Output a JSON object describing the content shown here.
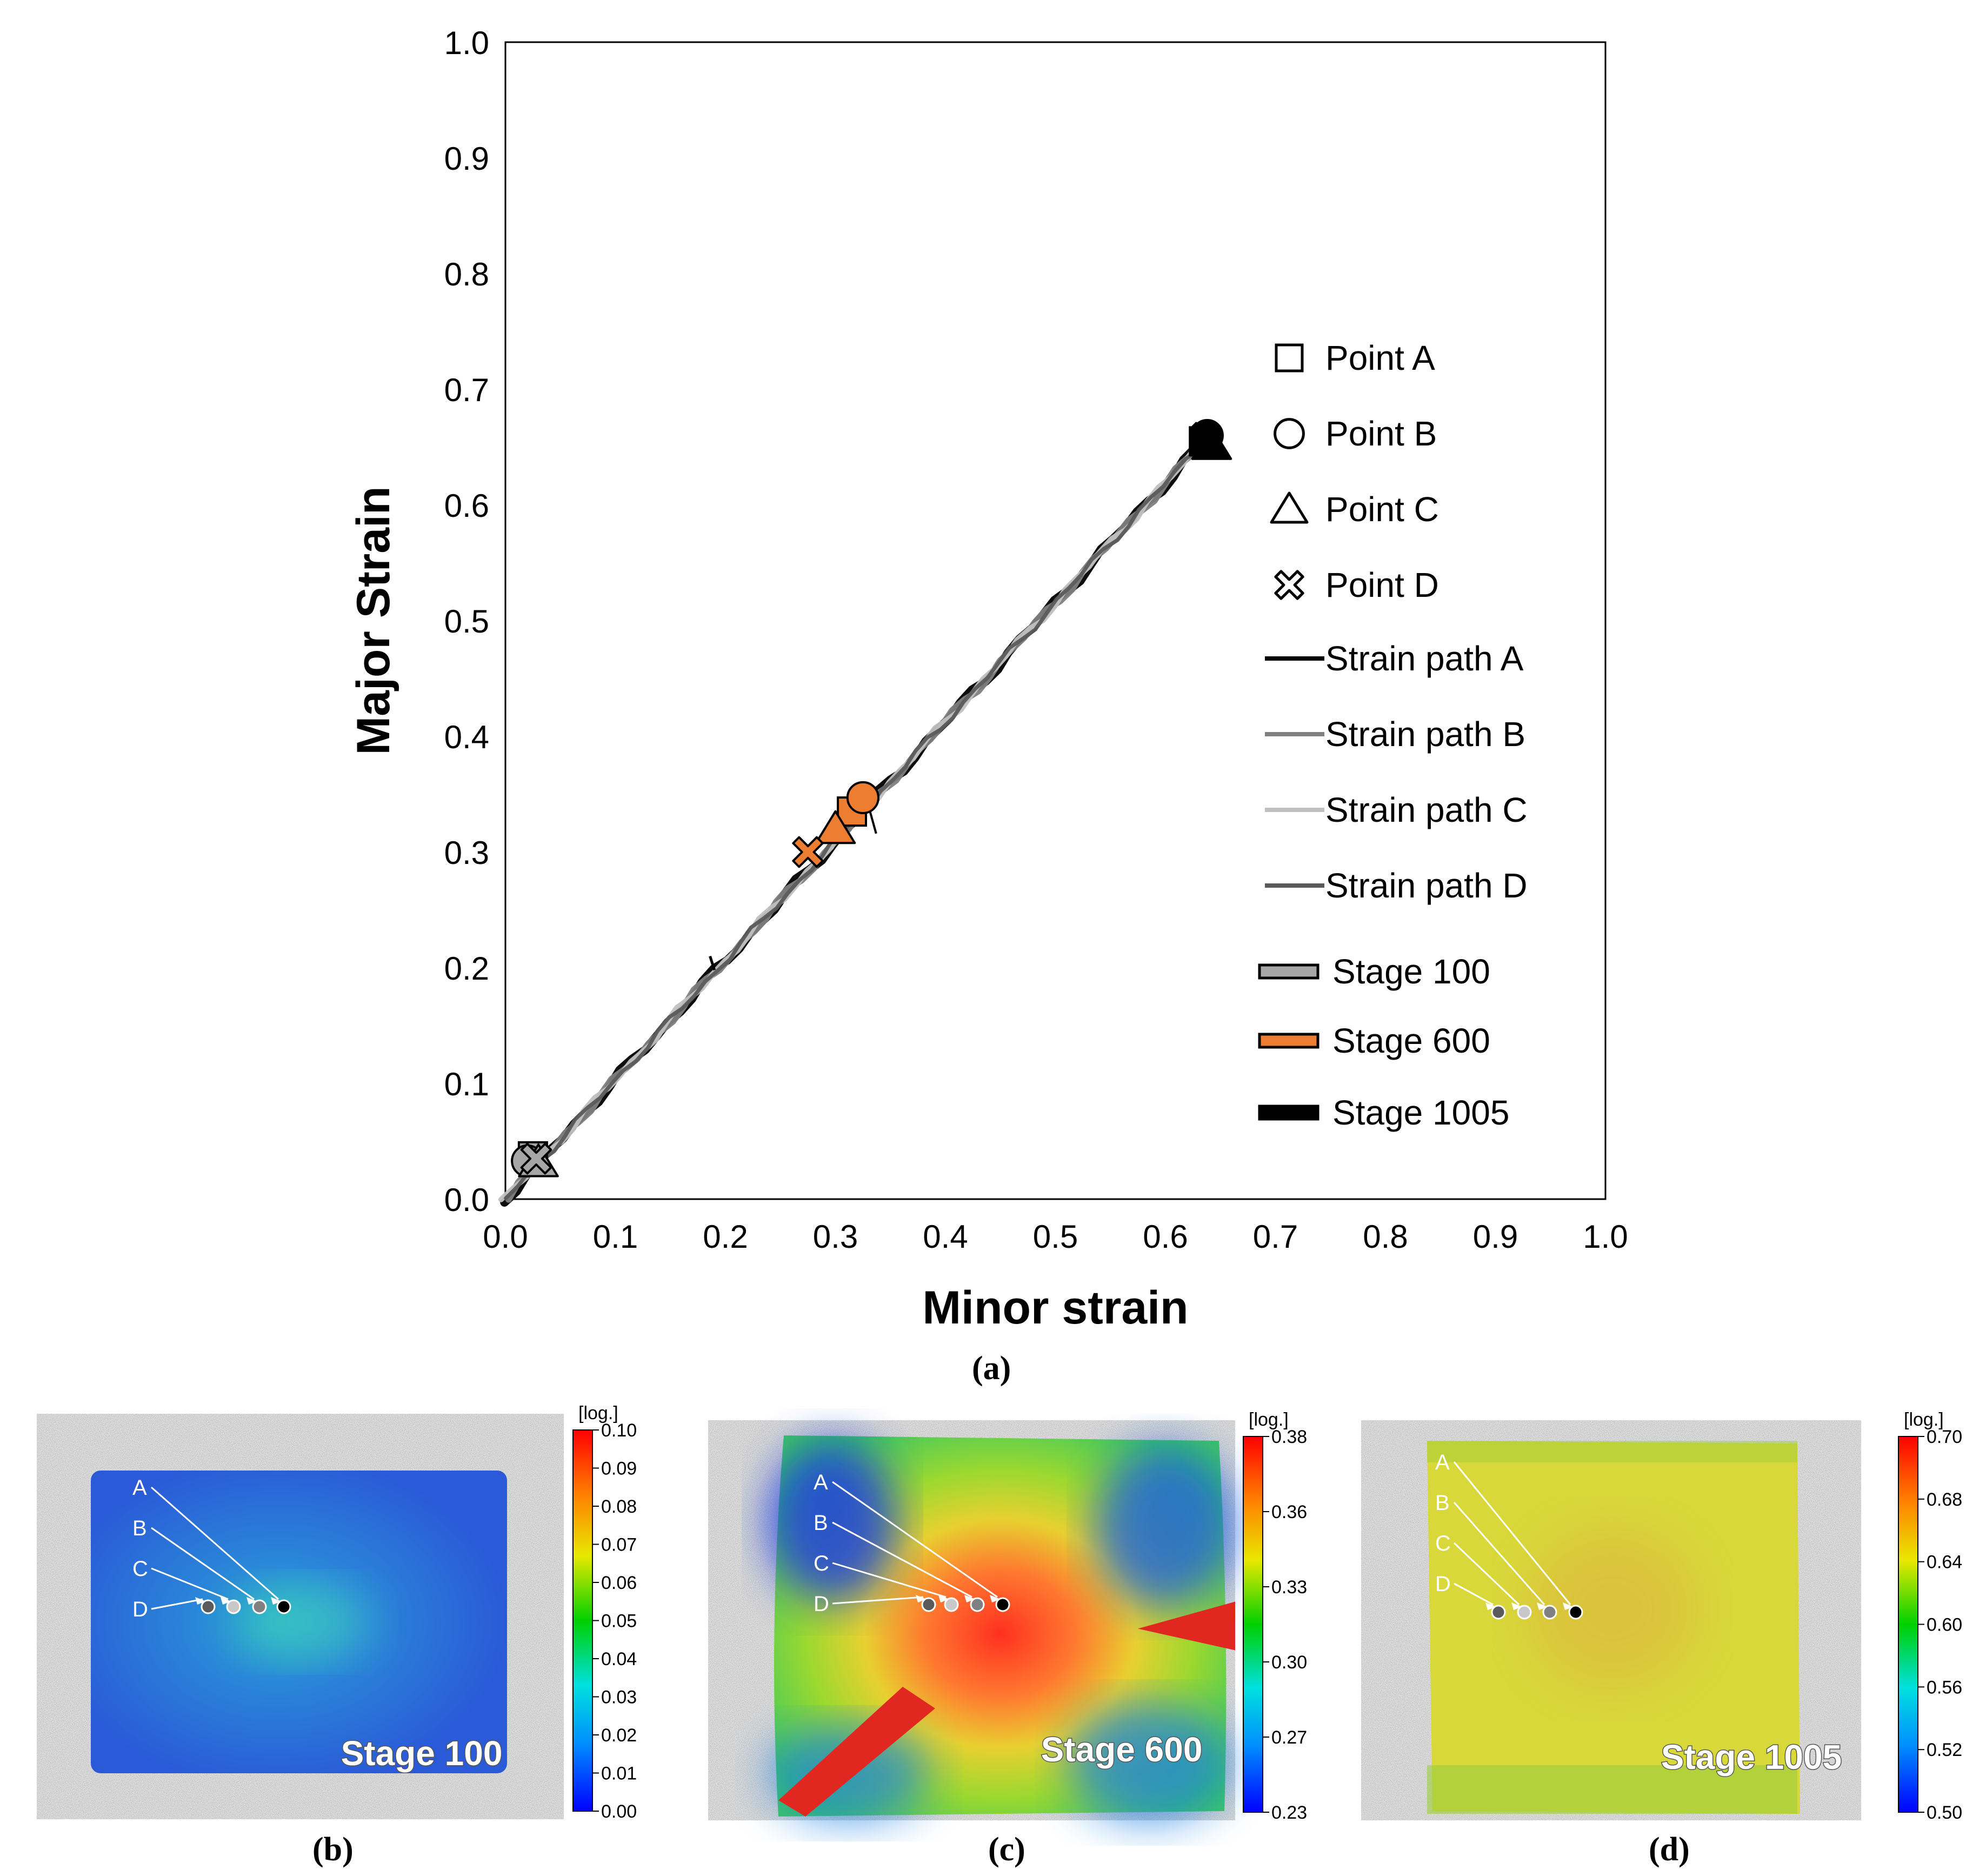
{
  "chart_data": {
    "type": "scatter",
    "title": "",
    "xlabel": "Minor strain",
    "ylabel": "Major Strain",
    "xlim": [
      0.0,
      1.0
    ],
    "ylim": [
      0.0,
      1.0
    ],
    "x_ticks": [
      "0.0",
      "0.1",
      "0.2",
      "0.3",
      "0.4",
      "0.5",
      "0.6",
      "0.7",
      "0.8",
      "0.9",
      "1.0"
    ],
    "y_ticks": [
      "0.0",
      "0.1",
      "0.2",
      "0.3",
      "0.4",
      "0.5",
      "0.6",
      "0.7",
      "0.8",
      "0.9",
      "1.0"
    ],
    "grid": false,
    "legend_position": "right",
    "series": [
      {
        "name": "Strain path A",
        "style": "line",
        "color": "#000000",
        "x": [
          0.0,
          0.64
        ],
        "y": [
          0.0,
          0.66
        ]
      },
      {
        "name": "Strain path B",
        "style": "line",
        "color": "#808080",
        "x": [
          0.0,
          0.64
        ],
        "y": [
          0.0,
          0.66
        ]
      },
      {
        "name": "Strain path C",
        "style": "line",
        "color": "#c0c0c0",
        "x": [
          0.0,
          0.64
        ],
        "y": [
          0.0,
          0.66
        ]
      },
      {
        "name": "Strain path D",
        "style": "line",
        "color": "#5a5a5a",
        "x": [
          0.0,
          0.64
        ],
        "y": [
          0.0,
          0.66
        ]
      }
    ],
    "points": [
      {
        "label": "Point A",
        "stage": "Stage 100",
        "marker": "square",
        "x": 0.025,
        "y": 0.037
      },
      {
        "label": "Point B",
        "stage": "Stage 100",
        "marker": "circle",
        "x": 0.02,
        "y": 0.033
      },
      {
        "label": "Point C",
        "stage": "Stage 100",
        "marker": "triangle",
        "x": 0.03,
        "y": 0.032
      },
      {
        "label": "Point D",
        "stage": "Stage 100",
        "marker": "cross",
        "x": 0.028,
        "y": 0.035
      },
      {
        "label": "Point A",
        "stage": "Stage 600",
        "marker": "square",
        "x": 0.315,
        "y": 0.335
      },
      {
        "label": "Point B",
        "stage": "Stage 600",
        "marker": "circle",
        "x": 0.325,
        "y": 0.347
      },
      {
        "label": "Point C",
        "stage": "Stage 600",
        "marker": "triangle",
        "x": 0.3,
        "y": 0.32
      },
      {
        "label": "Point D",
        "stage": "Stage 600",
        "marker": "cross",
        "x": 0.275,
        "y": 0.3
      },
      {
        "label": "Point A",
        "stage": "Stage 1005",
        "marker": "square",
        "x": 0.635,
        "y": 0.655
      },
      {
        "label": "Point B",
        "stage": "Stage 1005",
        "marker": "circle",
        "x": 0.638,
        "y": 0.66
      },
      {
        "label": "Point C",
        "stage": "Stage 1005",
        "marker": "triangle",
        "x": 0.642,
        "y": 0.652
      },
      {
        "label": "Point D",
        "stage": "Stage 1005",
        "marker": "cross",
        "x": 0.636,
        "y": 0.658
      }
    ],
    "legend": [
      {
        "label": "Point A",
        "kind": "square"
      },
      {
        "label": "Point B",
        "kind": "circle"
      },
      {
        "label": "Point C",
        "kind": "triangle"
      },
      {
        "label": "Point D",
        "kind": "cross"
      },
      {
        "label": "Strain path A",
        "kind": "line",
        "color": "#000000"
      },
      {
        "label": "Strain path B",
        "kind": "line",
        "color": "#808080"
      },
      {
        "label": "Strain path C",
        "kind": "line",
        "color": "#c0c0c0"
      },
      {
        "label": "Strain path D",
        "kind": "line",
        "color": "#5a5a5a"
      },
      {
        "label": "Stage 100",
        "kind": "stage",
        "color": "#a6a6a6"
      },
      {
        "label": "Stage 600",
        "kind": "stage",
        "color": "#ed7d31"
      },
      {
        "label": "Stage 1005",
        "kind": "stage",
        "color": "#000000"
      }
    ],
    "stage_colors": {
      "Stage 100": "#a6a6a6",
      "Stage 600": "#ed7d31",
      "Stage 1005": "#000000"
    }
  },
  "captions": {
    "a": "(a)",
    "b": "(b)",
    "c": "(c)",
    "d": "(d)"
  },
  "panels": [
    {
      "id": "b",
      "stage_label": "Stage 100",
      "scale_unit": "[log.]",
      "scale_ticks": [
        "0.10",
        "0.09",
        "0.08",
        "0.07",
        "0.06",
        "0.05",
        "0.04",
        "0.03",
        "0.02",
        "0.01",
        "0.00"
      ],
      "point_labels": [
        "A",
        "B",
        "C",
        "D"
      ],
      "field": "blue",
      "point_colors": [
        "#000000",
        "#808080",
        "#c8c8c8",
        "#5a5a5a"
      ]
    },
    {
      "id": "c",
      "stage_label": "Stage 600",
      "scale_unit": "[log.]",
      "scale_ticks": [
        "0.38",
        "0.36",
        "0.33",
        "0.30",
        "0.27",
        "0.23"
      ],
      "point_labels": [
        "A",
        "B",
        "C",
        "D"
      ],
      "field": "hot",
      "point_colors": [
        "#000000",
        "#808080",
        "#c8c8c8",
        "#5a5a5a"
      ]
    },
    {
      "id": "d",
      "stage_label": "Stage 1005",
      "scale_unit": "[log.]",
      "scale_ticks": [
        "0.70",
        "0.68",
        "0.64",
        "0.60",
        "0.56",
        "0.52",
        "0.50"
      ],
      "point_labels": [
        "A",
        "B",
        "C",
        "D"
      ],
      "field": "yellow",
      "point_colors": [
        "#000000",
        "#808080",
        "#c8c8c8",
        "#5a5a5a"
      ]
    }
  ]
}
